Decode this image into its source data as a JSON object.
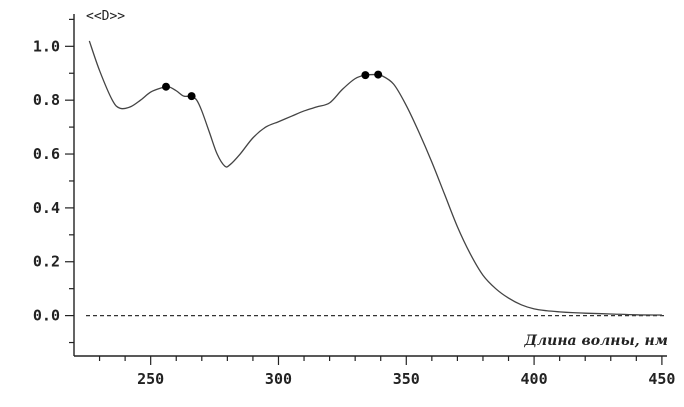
{
  "chart_data": {
    "type": "line",
    "ylabel": "<<D>>",
    "xlabel": "Длина волны, нм",
    "xlim": [
      220,
      452
    ],
    "ylim": [
      -0.15,
      1.12
    ],
    "x_ticks": [
      250,
      300,
      350,
      400,
      450
    ],
    "y_ticks": [
      0.0,
      0.2,
      0.4,
      0.6,
      0.8,
      1.0
    ],
    "x_tick_labels": [
      "250",
      "300",
      "350",
      "400",
      "450"
    ],
    "y_tick_labels": [
      "0.0",
      "0.2",
      "0.4",
      "0.6",
      "0.8",
      "1.0"
    ],
    "baseline": 0.0,
    "grid": false,
    "series": [
      {
        "x": [
          226,
          230,
          235,
          238,
          242,
          246,
          250,
          254,
          257,
          260,
          263,
          266,
          268,
          270,
          273,
          276,
          279,
          281,
          285,
          290,
          295,
          300,
          305,
          310,
          315,
          320,
          325,
          330,
          334,
          338,
          340,
          345,
          350,
          355,
          360,
          365,
          370,
          375,
          380,
          385,
          390,
          395,
          400,
          405,
          410,
          415,
          420,
          430,
          440,
          450
        ],
        "y": [
          1.02,
          0.91,
          0.8,
          0.77,
          0.775,
          0.8,
          0.83,
          0.845,
          0.85,
          0.835,
          0.815,
          0.815,
          0.8,
          0.76,
          0.68,
          0.6,
          0.555,
          0.56,
          0.6,
          0.66,
          0.7,
          0.72,
          0.74,
          0.76,
          0.775,
          0.79,
          0.84,
          0.88,
          0.893,
          0.895,
          0.893,
          0.86,
          0.78,
          0.68,
          0.57,
          0.45,
          0.33,
          0.23,
          0.15,
          0.1,
          0.065,
          0.04,
          0.025,
          0.018,
          0.014,
          0.011,
          0.009,
          0.006,
          0.003,
          0.002
        ],
        "color": "#444444"
      }
    ],
    "peaks": [
      {
        "x": 256,
        "y": 0.85
      },
      {
        "x": 266,
        "y": 0.815
      },
      {
        "x": 334,
        "y": 0.893
      },
      {
        "x": 339,
        "y": 0.895
      }
    ]
  }
}
